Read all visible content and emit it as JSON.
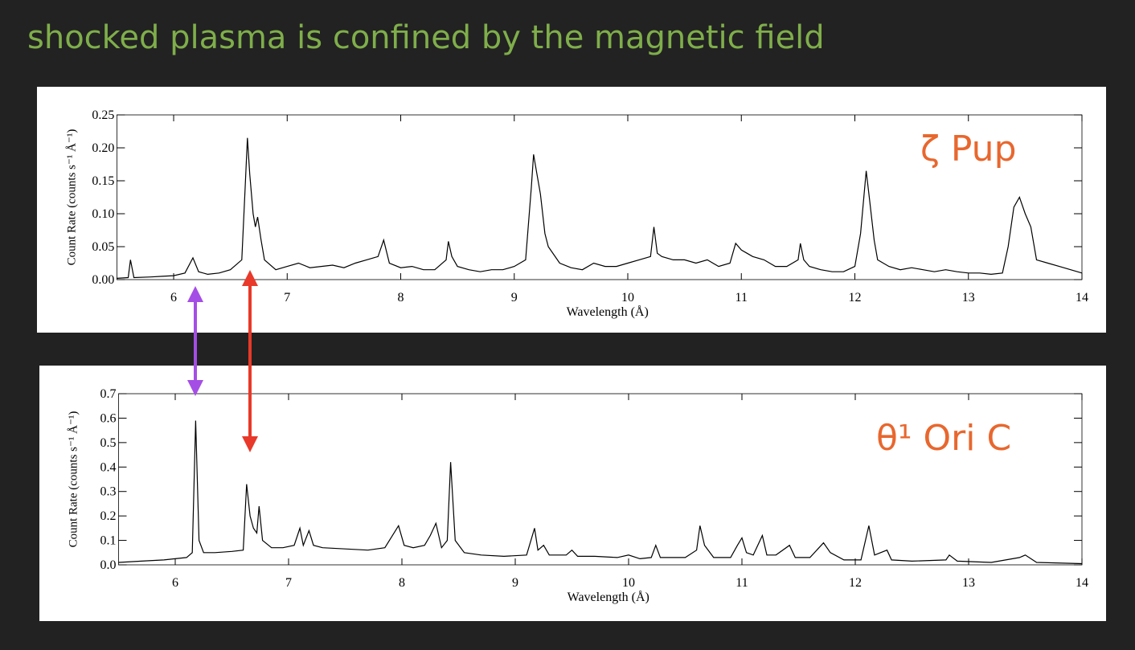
{
  "title": "shocked plasma is confined by the magnetic field",
  "chart_data": [
    {
      "type": "line",
      "annotation": "ζ Pup",
      "ylabel": "Count Rate (counts s⁻¹ Å⁻¹)",
      "xlabel": "Wavelength (Å)",
      "color": "#000000",
      "xlim": [
        5.5,
        14
      ],
      "ylim": [
        0,
        0.25
      ],
      "xticks": [
        6,
        7,
        8,
        9,
        10,
        11,
        12,
        13,
        14
      ],
      "yticks": [
        {
          "value": 0,
          "label": "0.00"
        },
        0.05,
        {
          "value": 0.1,
          "label": "0.10"
        },
        0.15,
        {
          "value": 0.2,
          "label": "0.20"
        },
        0.25
      ],
      "x": [
        5.5,
        5.6,
        5.62,
        5.65,
        5.8,
        5.9,
        6.0,
        6.1,
        6.17,
        6.22,
        6.3,
        6.4,
        6.5,
        6.6,
        6.63,
        6.65,
        6.67,
        6.7,
        6.72,
        6.74,
        6.77,
        6.8,
        6.9,
        7.0,
        7.1,
        7.2,
        7.3,
        7.4,
        7.5,
        7.6,
        7.7,
        7.8,
        7.85,
        7.9,
        8.0,
        8.1,
        8.2,
        8.3,
        8.4,
        8.42,
        8.45,
        8.5,
        8.6,
        8.7,
        8.8,
        8.9,
        9.0,
        9.1,
        9.15,
        9.17,
        9.2,
        9.23,
        9.27,
        9.3,
        9.4,
        9.5,
        9.6,
        9.7,
        9.8,
        9.9,
        10.0,
        10.1,
        10.2,
        10.23,
        10.26,
        10.3,
        10.4,
        10.5,
        10.6,
        10.7,
        10.8,
        10.9,
        10.95,
        11.0,
        11.05,
        11.1,
        11.2,
        11.3,
        11.4,
        11.5,
        11.52,
        11.55,
        11.6,
        11.7,
        11.8,
        11.9,
        12.0,
        12.05,
        12.1,
        12.13,
        12.17,
        12.2,
        12.3,
        12.4,
        12.5,
        12.6,
        12.7,
        12.8,
        12.9,
        13.0,
        13.1,
        13.2,
        13.3,
        13.35,
        13.4,
        13.45,
        13.5,
        13.55,
        13.6,
        13.7,
        13.8,
        13.9,
        14.0
      ],
      "values": [
        0.002,
        0.003,
        0.03,
        0.003,
        0.004,
        0.005,
        0.006,
        0.01,
        0.033,
        0.012,
        0.008,
        0.01,
        0.015,
        0.03,
        0.14,
        0.215,
        0.16,
        0.1,
        0.08,
        0.095,
        0.06,
        0.03,
        0.015,
        0.02,
        0.025,
        0.018,
        0.02,
        0.022,
        0.018,
        0.025,
        0.03,
        0.035,
        0.06,
        0.025,
        0.018,
        0.02,
        0.015,
        0.015,
        0.03,
        0.058,
        0.035,
        0.02,
        0.015,
        0.012,
        0.015,
        0.015,
        0.02,
        0.03,
        0.14,
        0.19,
        0.16,
        0.13,
        0.07,
        0.05,
        0.025,
        0.018,
        0.015,
        0.025,
        0.02,
        0.02,
        0.025,
        0.03,
        0.035,
        0.08,
        0.04,
        0.035,
        0.03,
        0.03,
        0.025,
        0.03,
        0.02,
        0.025,
        0.055,
        0.045,
        0.04,
        0.035,
        0.03,
        0.02,
        0.02,
        0.03,
        0.055,
        0.03,
        0.02,
        0.015,
        0.012,
        0.012,
        0.02,
        0.07,
        0.165,
        0.12,
        0.06,
        0.03,
        0.02,
        0.015,
        0.018,
        0.015,
        0.012,
        0.015,
        0.012,
        0.01,
        0.01,
        0.008,
        0.01,
        0.05,
        0.11,
        0.125,
        0.1,
        0.08,
        0.03,
        0.025,
        0.02,
        0.015,
        0.01
      ]
    },
    {
      "type": "line",
      "annotation": "θ¹ Ori C",
      "ylabel": "Count Rate (counts s⁻¹ Å⁻¹)",
      "xlabel": "Wavelength (Å)",
      "color": "#000000",
      "xlim": [
        5.5,
        14
      ],
      "ylim": [
        0,
        0.7
      ],
      "xticks": [
        6,
        7,
        8,
        9,
        10,
        11,
        12,
        13,
        14
      ],
      "yticks": [
        {
          "value": 0,
          "label": "0.0"
        },
        0.1,
        0.2,
        0.3,
        0.4,
        0.5,
        0.6,
        0.7
      ],
      "x": [
        5.5,
        5.7,
        5.9,
        6.0,
        6.1,
        6.15,
        6.18,
        6.21,
        6.25,
        6.35,
        6.5,
        6.6,
        6.63,
        6.66,
        6.69,
        6.72,
        6.74,
        6.77,
        6.85,
        6.95,
        7.05,
        7.1,
        7.13,
        7.18,
        7.22,
        7.3,
        7.5,
        7.7,
        7.85,
        7.97,
        8.02,
        8.1,
        8.2,
        8.25,
        8.3,
        8.35,
        8.4,
        8.43,
        8.47,
        8.55,
        8.7,
        8.9,
        9.1,
        9.17,
        9.2,
        9.25,
        9.3,
        9.45,
        9.5,
        9.55,
        9.7,
        9.9,
        10.0,
        10.1,
        10.2,
        10.24,
        10.28,
        10.4,
        10.5,
        10.6,
        10.63,
        10.67,
        10.75,
        10.9,
        10.96,
        11.0,
        11.04,
        11.1,
        11.18,
        11.22,
        11.3,
        11.42,
        11.47,
        11.6,
        11.72,
        11.78,
        11.9,
        12.05,
        12.12,
        12.17,
        12.28,
        12.32,
        12.5,
        12.8,
        12.83,
        12.9,
        13.2,
        13.45,
        13.5,
        13.6,
        14.0
      ],
      "values": [
        0.01,
        0.015,
        0.02,
        0.025,
        0.03,
        0.05,
        0.59,
        0.1,
        0.05,
        0.05,
        0.055,
        0.06,
        0.33,
        0.2,
        0.15,
        0.13,
        0.24,
        0.1,
        0.07,
        0.07,
        0.08,
        0.15,
        0.08,
        0.14,
        0.08,
        0.07,
        0.065,
        0.06,
        0.07,
        0.16,
        0.08,
        0.07,
        0.08,
        0.12,
        0.17,
        0.07,
        0.1,
        0.42,
        0.1,
        0.05,
        0.04,
        0.035,
        0.04,
        0.15,
        0.06,
        0.08,
        0.04,
        0.04,
        0.06,
        0.035,
        0.035,
        0.03,
        0.04,
        0.025,
        0.03,
        0.08,
        0.03,
        0.03,
        0.03,
        0.06,
        0.16,
        0.08,
        0.03,
        0.03,
        0.08,
        0.11,
        0.05,
        0.04,
        0.12,
        0.04,
        0.04,
        0.08,
        0.03,
        0.03,
        0.09,
        0.05,
        0.02,
        0.02,
        0.16,
        0.04,
        0.06,
        0.02,
        0.015,
        0.02,
        0.04,
        0.015,
        0.01,
        0.03,
        0.04,
        0.01,
        0.005
      ]
    }
  ]
}
